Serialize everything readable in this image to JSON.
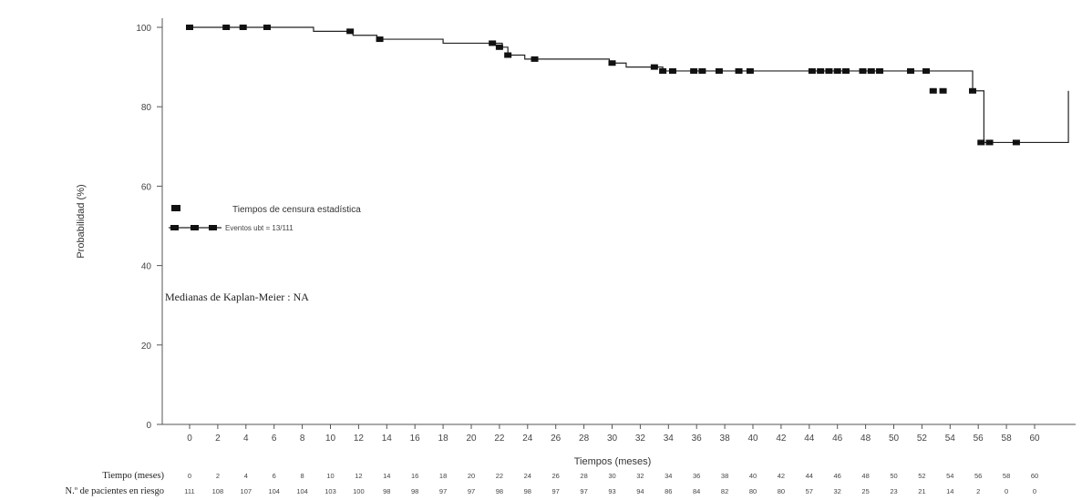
{
  "chart_data": {
    "type": "line",
    "subtype": "kaplan-meier",
    "title": "",
    "xlabel": "Tiempos (meses)",
    "ylabel": "Probabilidad (%)",
    "xlim": [
      -2,
      60
    ],
    "ylim": [
      0,
      100
    ],
    "x_ticks": [
      0,
      2,
      4,
      6,
      8,
      10,
      12,
      14,
      16,
      18,
      20,
      22,
      24,
      26,
      28,
      30,
      32,
      34,
      36,
      38,
      40,
      42,
      44,
      46,
      48,
      50,
      52,
      54,
      56,
      58,
      60
    ],
    "x_tick_labels": [
      "0",
      "2",
      "4",
      "6",
      "8",
      "10",
      "12",
      "14",
      "16",
      "18",
      "20",
      "22",
      "24",
      "26",
      "28",
      "30",
      "32",
      "34",
      "36",
      "38",
      "40",
      "42",
      "44",
      "46",
      "48",
      "50",
      "52",
      "54",
      "56",
      "58",
      "60"
    ],
    "y_ticks": [
      0,
      20,
      40,
      60,
      80,
      100
    ],
    "y_tick_labels": [
      "0",
      "20",
      "40",
      "60",
      "80",
      "100"
    ],
    "grid": false,
    "legend_position": "left",
    "series": [
      {
        "name": "Eventos ubt = 13/111",
        "color": "#222222",
        "steps": [
          [
            0,
            100
          ],
          [
            8.8,
            99
          ],
          [
            11.6,
            98
          ],
          [
            13.3,
            97
          ],
          [
            18,
            96
          ],
          [
            22.2,
            95
          ],
          [
            22.6,
            93
          ],
          [
            23.8,
            92
          ],
          [
            29.8,
            91
          ],
          [
            31.0,
            90
          ],
          [
            33.6,
            89
          ],
          [
            62.4,
            84
          ],
          [
            55.6,
            84
          ],
          [
            56.4,
            71
          ],
          [
            58.8,
            71
          ]
        ],
        "censored_marks": [
          [
            0,
            100
          ],
          [
            2.6,
            100
          ],
          [
            3.8,
            100
          ],
          [
            5.5,
            100
          ],
          [
            11.4,
            99
          ],
          [
            13.5,
            97
          ],
          [
            21.5,
            96
          ],
          [
            22.0,
            95
          ],
          [
            22.6,
            93
          ],
          [
            24.5,
            92
          ],
          [
            30.0,
            91
          ],
          [
            33.0,
            90
          ],
          [
            33.6,
            89
          ],
          [
            34.3,
            89
          ],
          [
            35.8,
            89
          ],
          [
            36.4,
            89
          ],
          [
            37.6,
            89
          ],
          [
            39.0,
            89
          ],
          [
            39.8,
            89
          ],
          [
            44.2,
            89
          ],
          [
            44.8,
            89
          ],
          [
            45.4,
            89
          ],
          [
            46.0,
            89
          ],
          [
            46.6,
            89
          ],
          [
            47.8,
            89
          ],
          [
            48.4,
            89
          ],
          [
            49.0,
            89
          ],
          [
            51.2,
            89
          ],
          [
            52.3,
            89
          ],
          [
            52.8,
            84
          ],
          [
            53.5,
            84
          ],
          [
            55.6,
            84
          ],
          [
            56.2,
            71
          ],
          [
            56.8,
            71
          ],
          [
            58.7,
            71
          ]
        ]
      }
    ],
    "legend": {
      "censor_label": "Tiempos de censura estadística",
      "series_label": "Eventos ubt = 13/111"
    },
    "annotation": "Medianas de Kaplan-Meier : NA",
    "risk_table": {
      "time_label": "Tiempo (meses)",
      "count_label": "N.º de pacientes en riesgo",
      "times": [
        "0",
        "2",
        "4",
        "6",
        "8",
        "10",
        "12",
        "14",
        "16",
        "18",
        "20",
        "22",
        "24",
        "26",
        "28",
        "30",
        "32",
        "34",
        "36",
        "38",
        "40",
        "42",
        "44",
        "46",
        "48",
        "50",
        "52",
        "54",
        "56",
        "58",
        "60"
      ],
      "counts": [
        "111",
        "108",
        "107",
        "104",
        "104",
        "103",
        "100",
        "98",
        "98",
        "97",
        "97",
        "98",
        "98",
        "97",
        "97",
        "93",
        "94",
        "86",
        "84",
        "82",
        "80",
        "80",
        "57",
        "32",
        "25",
        "23",
        "21",
        "14",
        "2",
        "0",
        "0"
      ]
    }
  }
}
